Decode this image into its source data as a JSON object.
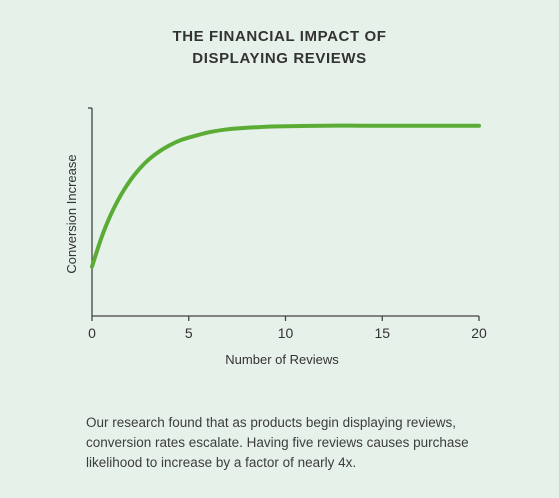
{
  "title_lines": [
    "THE FINANCIAL IMPACT OF",
    "DISPLAYING REVIEWS"
  ],
  "caption": "Our research found that as products begin displaying reviews, conversion rates escalate. Having five reviews causes purchase likelihood to increase by a factor of nearly 4x.",
  "colors": {
    "background": "#e6f1ea",
    "line": "#5aac35",
    "axis": "#444444",
    "text": "#333333"
  },
  "chart_data": {
    "type": "line",
    "title": "THE FINANCIAL IMPACT OF DISPLAYING REVIEWS",
    "xlabel": "Number of Reviews",
    "ylabel": "Conversion Increase",
    "xlim": [
      0,
      20
    ],
    "ylim": [
      0,
      4
    ],
    "x_ticks": [
      0,
      5,
      10,
      15,
      20
    ],
    "y_ticks_labeled": false,
    "grid": false,
    "legend": "none",
    "series": [
      {
        "x": [
          0,
          0.5,
          1,
          1.5,
          2,
          2.5,
          3,
          3.5,
          4,
          4.5,
          5,
          6,
          7,
          8,
          9,
          10,
          12,
          14,
          16,
          18,
          20
        ],
        "y": [
          0.95,
          1.52,
          1.97,
          2.33,
          2.62,
          2.85,
          3.03,
          3.17,
          3.28,
          3.37,
          3.43,
          3.53,
          3.59,
          3.62,
          3.64,
          3.65,
          3.66,
          3.66,
          3.66,
          3.66,
          3.66
        ]
      }
    ]
  }
}
